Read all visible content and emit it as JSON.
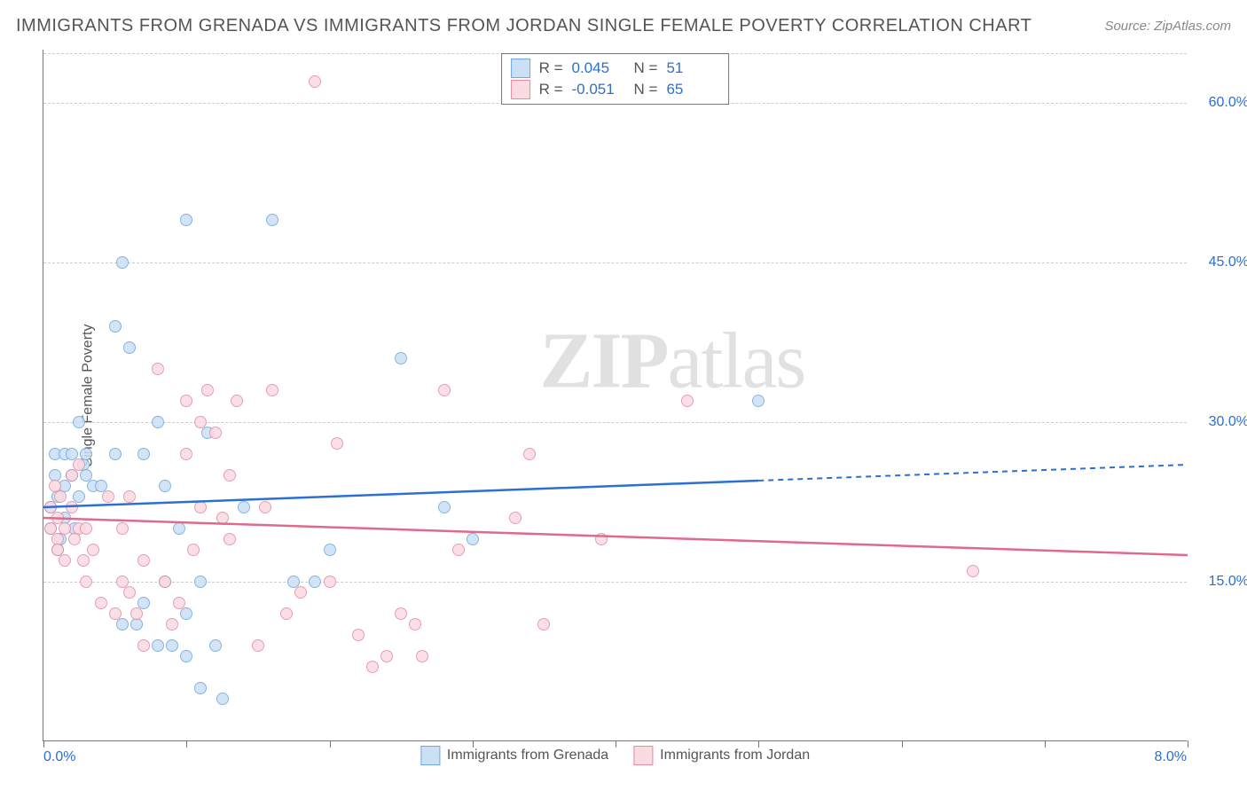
{
  "chart": {
    "title": "IMMIGRANTS FROM GRENADA VS IMMIGRANTS FROM JORDAN SINGLE FEMALE POVERTY CORRELATION CHART",
    "source": "Source: ZipAtlas.com",
    "watermark_bold": "ZIP",
    "watermark_rest": "atlas",
    "y_axis_label": "Single Female Poverty",
    "type": "scatter",
    "xlim": [
      0,
      8
    ],
    "ylim": [
      0,
      65
    ],
    "x_ticks": [
      0,
      1,
      2,
      3,
      4,
      5,
      6,
      7,
      8
    ],
    "x_tick_labels": {
      "0": "0.0%",
      "8": "8.0%"
    },
    "y_ticks": [
      15,
      30,
      45,
      60
    ],
    "y_tick_labels": {
      "15": "15.0%",
      "30": "30.0%",
      "45": "45.0%",
      "60": "60.0%"
    },
    "grid_color": "#cccccc",
    "axis_color": "#777777",
    "background_color": "#ffffff",
    "series": [
      {
        "key": "grenada",
        "label": "Immigrants from Grenada",
        "R_label": "R =",
        "R": "0.045",
        "N_label": "N =",
        "N": "51",
        "marker_fill": "#cce0f5",
        "marker_stroke": "#6fa8e0",
        "line_color": "#2b6fd4",
        "trend": {
          "x1": 0.0,
          "y1": 22.0,
          "x2": 5.0,
          "y2": 24.5,
          "x3": 8.0,
          "y3": 26.0
        },
        "points": [
          [
            0.05,
            22
          ],
          [
            0.05,
            20
          ],
          [
            0.08,
            25
          ],
          [
            0.08,
            27
          ],
          [
            0.1,
            23
          ],
          [
            0.1,
            18
          ],
          [
            0.12,
            19
          ],
          [
            0.15,
            21
          ],
          [
            0.15,
            24
          ],
          [
            0.15,
            27
          ],
          [
            0.2,
            25
          ],
          [
            0.2,
            27
          ],
          [
            0.22,
            20
          ],
          [
            0.25,
            23
          ],
          [
            0.25,
            30
          ],
          [
            0.28,
            26
          ],
          [
            0.3,
            27
          ],
          [
            0.3,
            25
          ],
          [
            0.35,
            24
          ],
          [
            0.4,
            24
          ],
          [
            0.5,
            27
          ],
          [
            0.5,
            39
          ],
          [
            0.55,
            11
          ],
          [
            0.55,
            45
          ],
          [
            0.6,
            37
          ],
          [
            0.65,
            11
          ],
          [
            0.7,
            27
          ],
          [
            0.7,
            13
          ],
          [
            0.8,
            30
          ],
          [
            0.8,
            9
          ],
          [
            0.85,
            24
          ],
          [
            0.85,
            15
          ],
          [
            0.9,
            9
          ],
          [
            0.95,
            20
          ],
          [
            1.0,
            49
          ],
          [
            1.0,
            12
          ],
          [
            1.0,
            8
          ],
          [
            1.1,
            5
          ],
          [
            1.1,
            15
          ],
          [
            1.2,
            9
          ],
          [
            1.15,
            29
          ],
          [
            1.25,
            4
          ],
          [
            1.4,
            22
          ],
          [
            1.6,
            49
          ],
          [
            1.75,
            15
          ],
          [
            1.9,
            15
          ],
          [
            2.0,
            18
          ],
          [
            2.5,
            36
          ],
          [
            2.8,
            22
          ],
          [
            3.0,
            19
          ],
          [
            5.0,
            32
          ]
        ]
      },
      {
        "key": "jordan",
        "label": "Immigrants from Jordan",
        "R_label": "R =",
        "R": "-0.051",
        "N_label": "N =",
        "N": "65",
        "marker_fill": "#fadbe2",
        "marker_stroke": "#e38ca5",
        "line_color": "#e06a8a",
        "trend": {
          "x1": 0.0,
          "y1": 21.0,
          "x2": 8.0,
          "y2": 17.5
        },
        "points": [
          [
            0.05,
            22
          ],
          [
            0.05,
            20
          ],
          [
            0.08,
            24
          ],
          [
            0.1,
            21
          ],
          [
            0.1,
            19
          ],
          [
            0.1,
            18
          ],
          [
            0.12,
            23
          ],
          [
            0.15,
            20
          ],
          [
            0.15,
            17
          ],
          [
            0.2,
            22
          ],
          [
            0.2,
            25
          ],
          [
            0.22,
            19
          ],
          [
            0.25,
            26
          ],
          [
            0.25,
            20
          ],
          [
            0.28,
            17
          ],
          [
            0.3,
            20
          ],
          [
            0.3,
            15
          ],
          [
            0.35,
            18
          ],
          [
            0.4,
            13
          ],
          [
            0.45,
            23
          ],
          [
            0.5,
            12
          ],
          [
            0.55,
            15
          ],
          [
            0.55,
            20
          ],
          [
            0.6,
            14
          ],
          [
            0.6,
            23
          ],
          [
            0.65,
            12
          ],
          [
            0.7,
            9
          ],
          [
            0.7,
            17
          ],
          [
            0.8,
            35
          ],
          [
            0.85,
            15
          ],
          [
            0.9,
            11
          ],
          [
            0.95,
            13
          ],
          [
            1.0,
            27
          ],
          [
            1.0,
            32
          ],
          [
            1.05,
            18
          ],
          [
            1.1,
            30
          ],
          [
            1.1,
            22
          ],
          [
            1.15,
            33
          ],
          [
            1.2,
            29
          ],
          [
            1.25,
            21
          ],
          [
            1.3,
            25
          ],
          [
            1.3,
            19
          ],
          [
            1.35,
            32
          ],
          [
            1.5,
            9
          ],
          [
            1.55,
            22
          ],
          [
            1.6,
            33
          ],
          [
            1.7,
            12
          ],
          [
            1.8,
            14
          ],
          [
            1.9,
            62
          ],
          [
            2.0,
            15
          ],
          [
            2.05,
            28
          ],
          [
            2.2,
            10
          ],
          [
            2.3,
            7
          ],
          [
            2.4,
            8
          ],
          [
            2.5,
            12
          ],
          [
            2.6,
            11
          ],
          [
            2.65,
            8
          ],
          [
            2.8,
            33
          ],
          [
            2.9,
            18
          ],
          [
            3.3,
            21
          ],
          [
            3.4,
            27
          ],
          [
            3.5,
            11
          ],
          [
            3.9,
            19
          ],
          [
            4.5,
            32
          ],
          [
            6.5,
            16
          ]
        ]
      }
    ]
  }
}
